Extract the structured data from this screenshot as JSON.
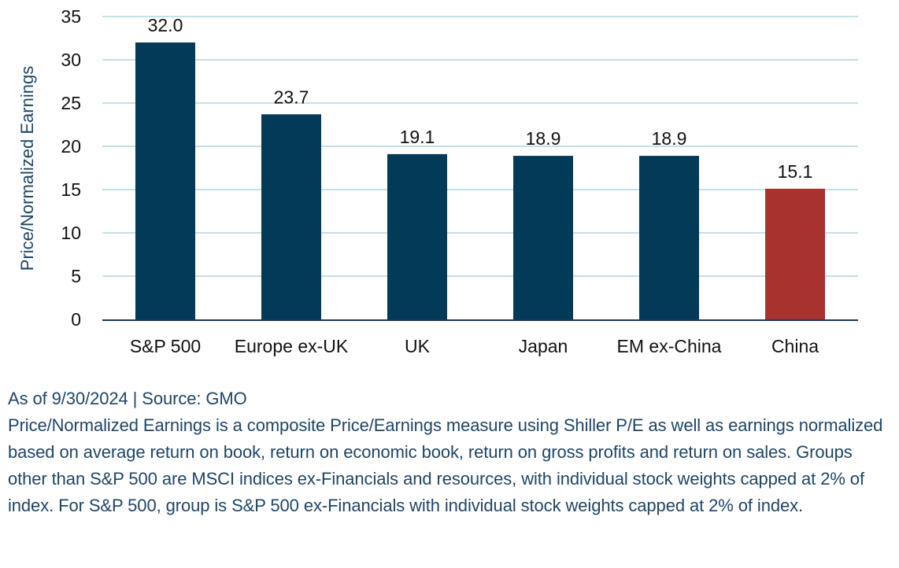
{
  "chart_data": {
    "type": "bar",
    "categories": [
      "S&P 500",
      "Europe ex-UK",
      "UK",
      "Japan",
      "EM ex-China",
      "China"
    ],
    "values": [
      32.0,
      23.7,
      19.1,
      18.9,
      18.9,
      15.1
    ],
    "value_labels": [
      "32.0",
      "23.7",
      "19.1",
      "18.9",
      "18.9",
      "15.1"
    ],
    "bar_colors": [
      "#023a57",
      "#023a57",
      "#023a57",
      "#023a57",
      "#023a57",
      "#a8322d"
    ],
    "ylabel": "Price/Normalized Earnings",
    "xlabel": "",
    "ylim": [
      0,
      35
    ],
    "yticks": [
      0,
      5,
      10,
      15,
      20,
      25,
      30,
      35
    ],
    "grid": true,
    "colors": {
      "axis_label": "#1f4566",
      "grid": "#c7dfe6",
      "axis": "#1b3a52",
      "text": "#111111"
    }
  },
  "footer": {
    "source": "As of 9/30/2024 | Source: GMO",
    "description": "Price/Normalized Earnings is a composite Price/Earnings measure using Shiller P/E as well as earnings normalized based on average return on book, return on economic book, return on gross profits and return on sales. Groups other than S&P 500 are MSCI indices ex-Financials and resources, with individual stock weights capped at 2% of index. For S&P 500, group is S&P 500 ex-Financials with individual stock weights capped at 2% of index."
  }
}
